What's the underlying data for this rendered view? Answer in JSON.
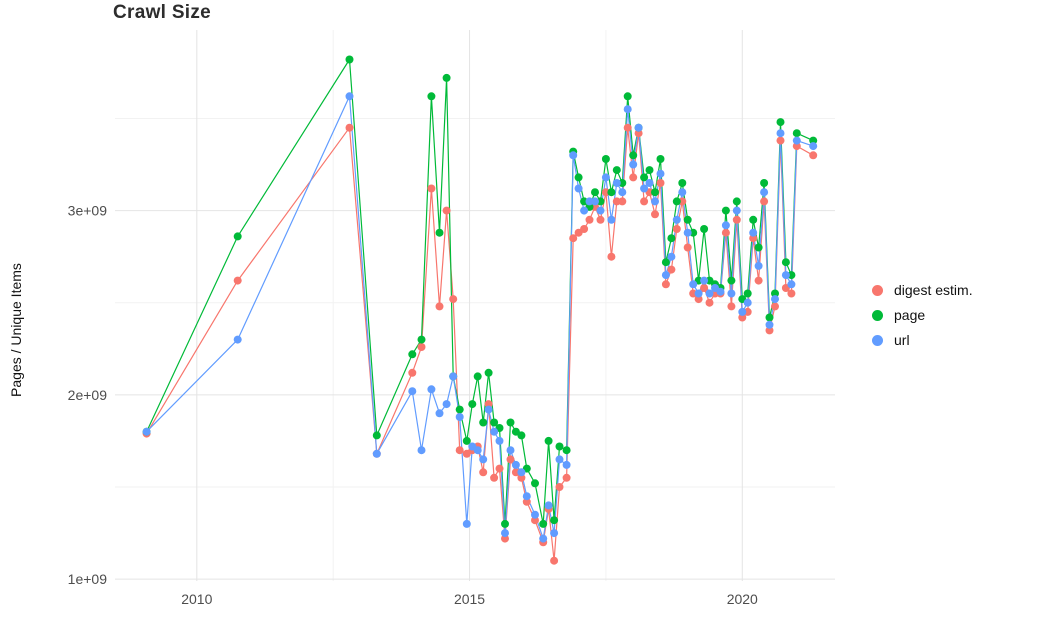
{
  "chart_data": {
    "type": "line",
    "title": "Crawl Size",
    "xlabel": "",
    "ylabel": "Pages / Unique Items",
    "grid": true,
    "legend_position": "right",
    "xlim": [
      2008.5,
      2021.7
    ],
    "ylim": [
      990000000.0,
      3980000000.0
    ],
    "y_unit": 1000000000.0,
    "x_ticks": {
      "values": [
        2010,
        2015,
        2020
      ],
      "labels": [
        "2010",
        "2015",
        "2020"
      ],
      "minor": [
        2012.5,
        2017.5
      ]
    },
    "y_ticks": {
      "values": [
        1000000000.0,
        2000000000.0,
        3000000000.0
      ],
      "labels": [
        "1e+09",
        "2e+09",
        "3e+09"
      ],
      "minor": [
        1500000000.0,
        2500000000.0,
        3500000000.0
      ]
    },
    "x": [
      2009.08,
      2010.75,
      2012.8,
      2013.3,
      2013.95,
      2014.12,
      2014.3,
      2014.45,
      2014.58,
      2014.7,
      2014.82,
      2014.95,
      2015.05,
      2015.15,
      2015.25,
      2015.35,
      2015.45,
      2015.55,
      2015.65,
      2015.75,
      2015.85,
      2015.95,
      2016.05,
      2016.2,
      2016.35,
      2016.45,
      2016.55,
      2016.65,
      2016.78,
      2016.9,
      2017.0,
      2017.1,
      2017.2,
      2017.3,
      2017.4,
      2017.5,
      2017.6,
      2017.7,
      2017.8,
      2017.9,
      2018.0,
      2018.1,
      2018.2,
      2018.3,
      2018.4,
      2018.5,
      2018.6,
      2018.7,
      2018.8,
      2018.9,
      2019.0,
      2019.1,
      2019.2,
      2019.3,
      2019.4,
      2019.5,
      2019.6,
      2019.7,
      2019.8,
      2019.9,
      2020.0,
      2020.1,
      2020.2,
      2020.3,
      2020.4,
      2020.5,
      2020.6,
      2020.7,
      2020.8,
      2020.9,
      2021.0,
      2021.3
    ],
    "series": [
      {
        "name": "digest estim.",
        "color": "#F8766D",
        "values": [
          1.79,
          2.62,
          3.45,
          1.68,
          2.12,
          2.26,
          3.12,
          2.48,
          3.0,
          2.52,
          1.7,
          1.68,
          1.7,
          1.72,
          1.58,
          1.95,
          1.55,
          1.6,
          1.22,
          1.65,
          1.58,
          1.55,
          1.42,
          1.32,
          1.2,
          1.38,
          1.1,
          1.5,
          1.55,
          2.85,
          2.88,
          2.9,
          2.95,
          3.02,
          2.95,
          3.1,
          2.75,
          3.05,
          3.05,
          3.45,
          3.18,
          3.42,
          3.05,
          3.1,
          2.98,
          3.15,
          2.6,
          2.68,
          2.9,
          3.05,
          2.8,
          2.55,
          2.52,
          2.58,
          2.5,
          2.55,
          2.55,
          2.88,
          2.48,
          2.95,
          2.42,
          2.45,
          2.85,
          2.62,
          3.05,
          2.35,
          2.48,
          3.38,
          2.58,
          2.55,
          3.35,
          3.3
        ]
      },
      {
        "name": "page",
        "color": "#00BA38",
        "values": [
          1.8,
          2.86,
          3.82,
          1.78,
          2.22,
          2.3,
          3.62,
          2.88,
          3.72,
          2.1,
          1.92,
          1.75,
          1.95,
          2.1,
          1.85,
          2.12,
          1.85,
          1.82,
          1.3,
          1.85,
          1.8,
          1.78,
          1.6,
          1.52,
          1.3,
          1.75,
          1.32,
          1.72,
          1.7,
          3.32,
          3.18,
          3.05,
          3.02,
          3.1,
          3.05,
          3.28,
          3.1,
          3.22,
          3.15,
          3.62,
          3.3,
          3.45,
          3.18,
          3.22,
          3.1,
          3.28,
          2.72,
          2.85,
          3.05,
          3.15,
          2.95,
          2.88,
          2.62,
          2.9,
          2.62,
          2.6,
          2.58,
          3.0,
          2.62,
          3.05,
          2.52,
          2.55,
          2.95,
          2.8,
          3.15,
          2.42,
          2.55,
          3.48,
          2.72,
          2.65,
          3.42,
          3.38
        ]
      },
      {
        "name": "url",
        "color": "#619CFF",
        "values": [
          1.8,
          2.3,
          3.62,
          1.68,
          2.02,
          1.7,
          2.03,
          1.9,
          1.95,
          2.1,
          1.88,
          1.3,
          1.72,
          1.7,
          1.65,
          1.92,
          1.8,
          1.75,
          1.25,
          1.7,
          1.62,
          1.58,
          1.45,
          1.35,
          1.22,
          1.4,
          1.25,
          1.65,
          1.62,
          3.3,
          3.12,
          3.0,
          3.05,
          3.05,
          3.0,
          3.18,
          2.95,
          3.15,
          3.1,
          3.55,
          3.25,
          3.45,
          3.12,
          3.15,
          3.05,
          3.2,
          2.65,
          2.75,
          2.95,
          3.1,
          2.88,
          2.6,
          2.55,
          2.62,
          2.55,
          2.58,
          2.56,
          2.92,
          2.55,
          3.0,
          2.45,
          2.5,
          2.88,
          2.7,
          3.1,
          2.38,
          2.52,
          3.42,
          2.65,
          2.6,
          3.38,
          3.35
        ]
      }
    ]
  }
}
